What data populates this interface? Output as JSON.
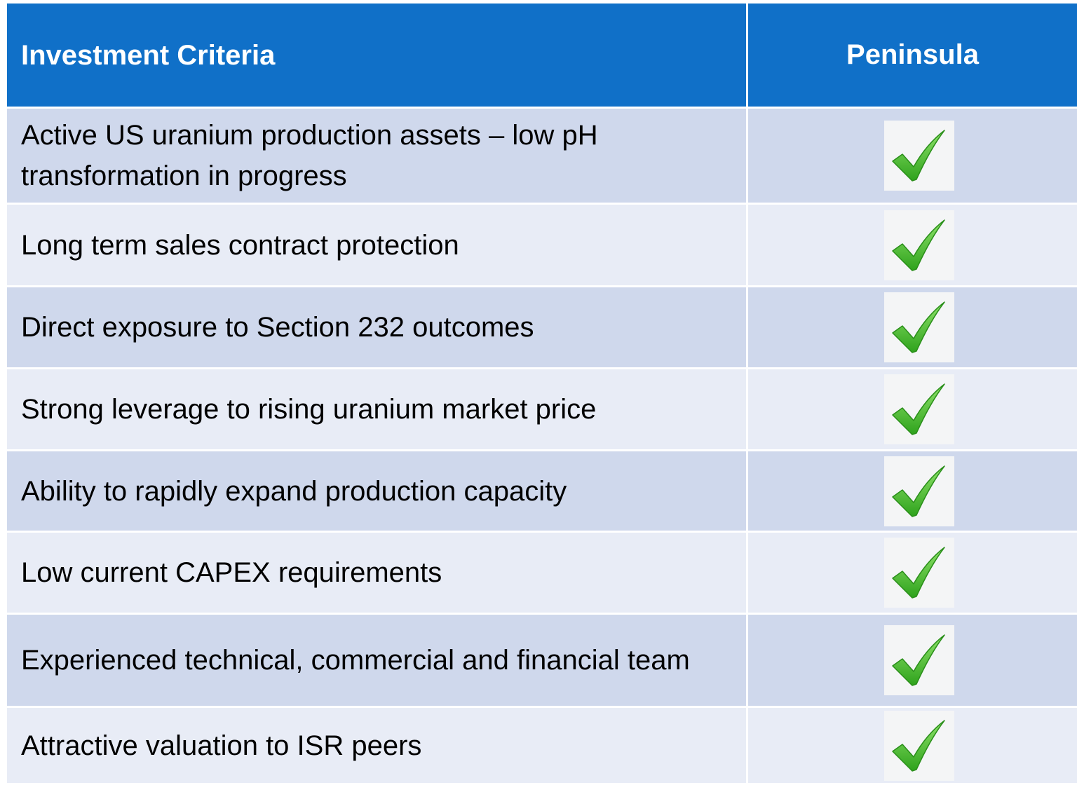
{
  "table": {
    "header": [
      "Investment Criteria",
      "Peninsula"
    ],
    "rows": [
      "Active US uranium production assets – low pH transformation in progress",
      "Long term sales contract protection",
      "Direct exposure to Section 232 outcomes",
      "Strong leverage to rising uranium market price",
      "Ability to rapidly expand production capacity",
      "Low current CAPEX requirements",
      "Experienced technical, commercial and financial team",
      "Attractive valuation to ISR peers"
    ]
  }
}
